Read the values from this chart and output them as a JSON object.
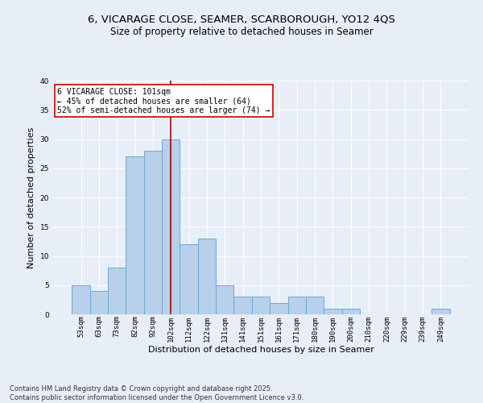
{
  "title1": "6, VICARAGE CLOSE, SEAMER, SCARBOROUGH, YO12 4QS",
  "title2": "Size of property relative to detached houses in Seamer",
  "xlabel": "Distribution of detached houses by size in Seamer",
  "ylabel": "Number of detached properties",
  "categories": [
    "53sqm",
    "63sqm",
    "73sqm",
    "82sqm",
    "92sqm",
    "102sqm",
    "112sqm",
    "122sqm",
    "131sqm",
    "141sqm",
    "151sqm",
    "161sqm",
    "171sqm",
    "180sqm",
    "190sqm",
    "200sqm",
    "210sqm",
    "220sqm",
    "229sqm",
    "239sqm",
    "249sqm"
  ],
  "values": [
    5,
    4,
    8,
    27,
    28,
    30,
    12,
    13,
    5,
    3,
    3,
    2,
    3,
    3,
    1,
    1,
    0,
    0,
    0,
    0,
    1
  ],
  "bar_color": "#b8d0ea",
  "bar_edge_color": "#6aaad4",
  "property_index": 5,
  "property_line_color": "#aa0000",
  "annotation_text": "6 VICARAGE CLOSE: 101sqm\n← 45% of detached houses are smaller (64)\n52% of semi-detached houses are larger (74) →",
  "annotation_box_color": "#ffffff",
  "annotation_box_edge": "#cc0000",
  "ylim": [
    0,
    40
  ],
  "yticks": [
    0,
    5,
    10,
    15,
    20,
    25,
    30,
    35,
    40
  ],
  "background_color": "#e8eef8",
  "grid_color": "#ffffff",
  "footer_text": "Contains HM Land Registry data © Crown copyright and database right 2025.\nContains public sector information licensed under the Open Government Licence v3.0.",
  "title_fontsize": 9.5,
  "subtitle_fontsize": 8.5,
  "axis_label_fontsize": 8,
  "tick_fontsize": 6.5,
  "annotation_fontsize": 7,
  "footer_fontsize": 6
}
